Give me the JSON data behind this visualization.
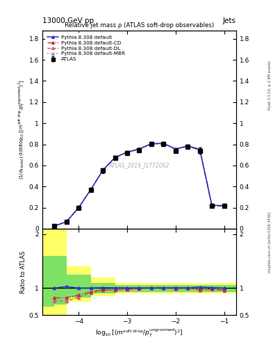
{
  "title_top": "13000 GeV pp",
  "title_right": "Jets",
  "plot_title": "Relative jet mass ρ (ATLAS soft-drop observables)",
  "watermark": "ATLAS_2019_I1772062",
  "ylabel_main": "(1/σ_{fiducial}) dσ/d log_{10}[(m^{soft drop}/p_{T}^{ungroomed})^{2}]",
  "ylabel_ratio": "Ratio to ATLAS",
  "right_label_top": "Rivet 3.1.10; ≥ 2.8M events",
  "right_label_bot": "mcplots.cern.ch [arXiv:1306.3436]",
  "x_data": [
    -4.5,
    -4.25,
    -4.0,
    -3.75,
    -3.5,
    -3.25,
    -3.0,
    -2.75,
    -2.5,
    -2.25,
    -2.0,
    -1.75,
    -1.5,
    -1.25,
    -1.0
  ],
  "atlas_y": [
    0.025,
    0.065,
    0.2,
    0.37,
    0.55,
    0.67,
    0.72,
    0.745,
    0.805,
    0.805,
    0.74,
    0.78,
    0.74,
    0.22,
    0.22
  ],
  "atlas_yerr": [
    0.005,
    0.01,
    0.015,
    0.02,
    0.02,
    0.02,
    0.02,
    0.02,
    0.02,
    0.02,
    0.02,
    0.02,
    0.03,
    0.015,
    0.015
  ],
  "pythia_default_y": [
    0.025,
    0.067,
    0.2,
    0.37,
    0.555,
    0.675,
    0.725,
    0.755,
    0.805,
    0.808,
    0.755,
    0.783,
    0.755,
    0.222,
    0.22
  ],
  "pythia_cd_y": [
    0.026,
    0.068,
    0.201,
    0.371,
    0.556,
    0.676,
    0.726,
    0.756,
    0.806,
    0.809,
    0.756,
    0.784,
    0.744,
    0.218,
    0.216
  ],
  "pythia_dl_y": [
    0.027,
    0.069,
    0.202,
    0.372,
    0.557,
    0.677,
    0.727,
    0.757,
    0.807,
    0.81,
    0.757,
    0.785,
    0.742,
    0.216,
    0.214
  ],
  "pythia_mbr_y": [
    0.024,
    0.064,
    0.198,
    0.368,
    0.552,
    0.672,
    0.722,
    0.752,
    0.802,
    0.805,
    0.752,
    0.78,
    0.748,
    0.22,
    0.218
  ],
  "ratio_default": [
    1.0,
    1.03,
    1.0,
    1.0,
    1.01,
    1.005,
    1.005,
    1.005,
    1.0,
    1.005,
    1.01,
    1.005,
    1.02,
    1.01,
    1.0
  ],
  "ratio_cd": [
    0.82,
    0.82,
    0.87,
    0.93,
    0.97,
    0.97,
    0.98,
    0.99,
    1.01,
    1.01,
    0.99,
    1.005,
    0.97,
    0.985,
    0.965
  ],
  "ratio_dl": [
    0.76,
    0.76,
    0.83,
    0.91,
    0.96,
    0.965,
    0.975,
    0.985,
    1.005,
    1.005,
    0.985,
    1.0,
    0.965,
    0.975,
    0.955
  ],
  "ratio_mbr": [
    0.78,
    0.82,
    0.88,
    0.93,
    0.97,
    0.975,
    0.98,
    0.99,
    1.0,
    1.005,
    1.0,
    1.005,
    1.0,
    1.0,
    0.99
  ],
  "yellow_band_xlo": [
    -4.75,
    -4.5,
    -4.25,
    -3.75,
    -3.25,
    -2.75
  ],
  "yellow_band_xhi": [
    -4.5,
    -4.25,
    -3.75,
    -3.25,
    -2.75,
    -0.75
  ],
  "yellow_band_lo": [
    0.5,
    0.5,
    0.75,
    0.85,
    0.9,
    0.9
  ],
  "yellow_band_hi": [
    2.1,
    2.1,
    1.4,
    1.2,
    1.1,
    1.1
  ],
  "green_band_xlo": [
    -4.75,
    -4.5,
    -4.25,
    -3.75,
    -3.25,
    -2.75
  ],
  "green_band_xhi": [
    -4.5,
    -4.25,
    -3.75,
    -3.25,
    -2.75,
    -0.75
  ],
  "green_band_lo": [
    0.65,
    0.7,
    0.82,
    0.9,
    0.93,
    0.93
  ],
  "green_band_hi": [
    1.6,
    1.6,
    1.25,
    1.1,
    1.06,
    1.06
  ],
  "xlim": [
    -4.75,
    -0.75
  ],
  "ylim_main": [
    0.0,
    1.88
  ],
  "ylim_ratio": [
    0.5,
    2.1
  ],
  "yticks_main": [
    0.0,
    0.2,
    0.4,
    0.6,
    0.8,
    1.0,
    1.2,
    1.4,
    1.6,
    1.8
  ],
  "ytick_labels_main": [
    "0",
    "0.2",
    "0.4",
    "0.6",
    "0.8",
    "1",
    "1.2",
    "1.4",
    "1.6",
    "1.8"
  ],
  "yticks_ratio": [
    0.5,
    1.0,
    2.0
  ],
  "ytick_labels_ratio": [
    "0.5",
    "1",
    "2"
  ],
  "xticks": [
    -4.0,
    -3.0,
    -2.0,
    -1.0
  ],
  "color_default": "#3333cc",
  "color_cd": "#cc3333",
  "color_dl": "#cc6666",
  "color_mbr": "#9999cc",
  "atlas_color": "#000000",
  "bg_color": "#ffffff"
}
